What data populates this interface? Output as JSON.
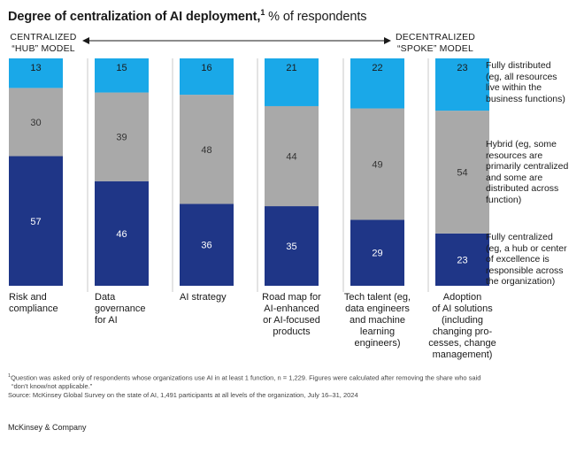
{
  "title": {
    "bold": "Degree of centralization of AI deployment,",
    "sup": "1",
    "rest": " % of respondents"
  },
  "axis": {
    "left_line1": "CENTRALIZED",
    "left_line2": "“HUB” MODEL",
    "right_line1": "DECENTRALIZED",
    "right_line2": "“SPOKE” MODEL"
  },
  "chart_data": {
    "type": "bar",
    "stacked": true,
    "title": "Degree of centralization of AI deployment, % of respondents",
    "categories": [
      "Risk and compliance",
      "Data governance for AI",
      "AI strategy",
      "Road map for AI-enhanced or AI-focused products",
      "Tech talent (eg, data engineers and machine learning engineers)",
      "Adoption of AI solutions (including changing pro-cesses, change management)"
    ],
    "category_lines": [
      [
        "Risk and",
        "compliance"
      ],
      [
        "Data",
        "governance",
        "for AI"
      ],
      [
        "AI strategy"
      ],
      [
        "Road map for",
        "AI-enhanced",
        "or AI-focused",
        "products"
      ],
      [
        "Tech talent (eg,",
        "data engineers",
        "and machine",
        "learning",
        "engineers)"
      ],
      [
        "Adoption",
        "of AI solutions",
        "(including",
        "changing pro-",
        "cesses, change",
        "management)"
      ]
    ],
    "series": [
      {
        "name": "Fully centralized",
        "color": "#1f3687",
        "label_color": "#ffffff",
        "values": [
          57,
          46,
          36,
          35,
          29,
          23
        ]
      },
      {
        "name": "Hybrid",
        "color": "#a9a9a9",
        "label_color": "#333333",
        "values": [
          30,
          39,
          48,
          44,
          49,
          54
        ]
      },
      {
        "name": "Fully distributed",
        "color": "#1aa8e8",
        "label_color": "#1a1a1a",
        "values": [
          13,
          15,
          16,
          21,
          22,
          23
        ]
      }
    ],
    "ylim": [
      0,
      100
    ],
    "xlabel": "",
    "ylabel": ""
  },
  "legend": {
    "distributed": [
      "Fully distributed",
      "(eg, all resources",
      "live within the",
      "business functions)"
    ],
    "hybrid": [
      "Hybrid (eg, some",
      "resources are",
      "primarily centralized",
      "and some are",
      "distributed across",
      "function)"
    ],
    "centralized": [
      "Fully centralized",
      "(eg, a hub or center",
      "of excellence is",
      "responsible across",
      "the organization)"
    ]
  },
  "footnote": {
    "sup": "1",
    "line1": "Question was asked only of respondents whose organizations use AI in at least 1 function, n = 1,229. Figures were calculated after removing the share who said",
    "line2": "“don’t know/not applicable.”",
    "line3": "Source: McKinsey Global Survey on the state of AI, 1,491 participants at all levels of the organization, July 16–31, 2024"
  },
  "brand": "McKinsey & Company",
  "colors": {
    "navy": "#1f3687",
    "gray": "#a9a9a9",
    "cyan": "#1aa8e8",
    "divider": "#c8c8c8"
  }
}
